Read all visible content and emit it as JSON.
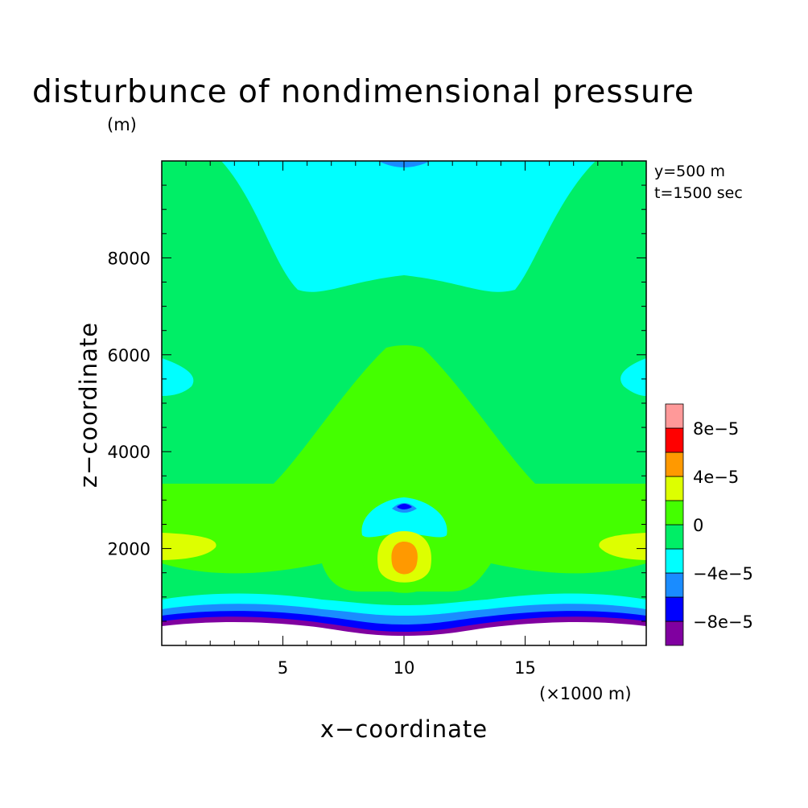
{
  "chart_data": {
    "type": "heatmap",
    "title": "disturbunce of nondimensional pressure",
    "units": "(m)",
    "xlabel": "x−coordinate",
    "ylabel": "z−coordinate",
    "x_unit": "(×1000 m)",
    "annotations": [
      "y=500 m",
      "t=1500 sec"
    ],
    "xlim": [
      0,
      20
    ],
    "ylim": [
      0,
      10000
    ],
    "x_ticks": [
      5,
      10,
      15
    ],
    "y_ticks": [
      2000,
      4000,
      6000,
      8000
    ],
    "x_tick_labels": [
      "5",
      "10",
      "15"
    ],
    "y_tick_labels": [
      "2000",
      "4000",
      "6000",
      "8000"
    ],
    "colorbar": {
      "levels": [
        -0.0001,
        -8e-05,
        -6e-05,
        -4e-05,
        -2e-05,
        0,
        2e-05,
        4e-05,
        6e-05,
        8e-05,
        0.0001
      ],
      "labels": [
        "8e−5",
        "4e−5",
        "0",
        "−4e−5",
        "−8e−5"
      ],
      "label_values": [
        8e-05,
        4e-05,
        0,
        -4e-05,
        -8e-05
      ],
      "colors": [
        "#8000a0",
        "#0000ff",
        "#1a8cff",
        "#00ffff",
        "#00ee66",
        "#44ff00",
        "#ddff00",
        "#ff9900",
        "#ff0000",
        "#ff9999"
      ]
    },
    "terrain": "bell-shaped hill centered at x=10 (×1000 m), base near z≈300 m"
  }
}
